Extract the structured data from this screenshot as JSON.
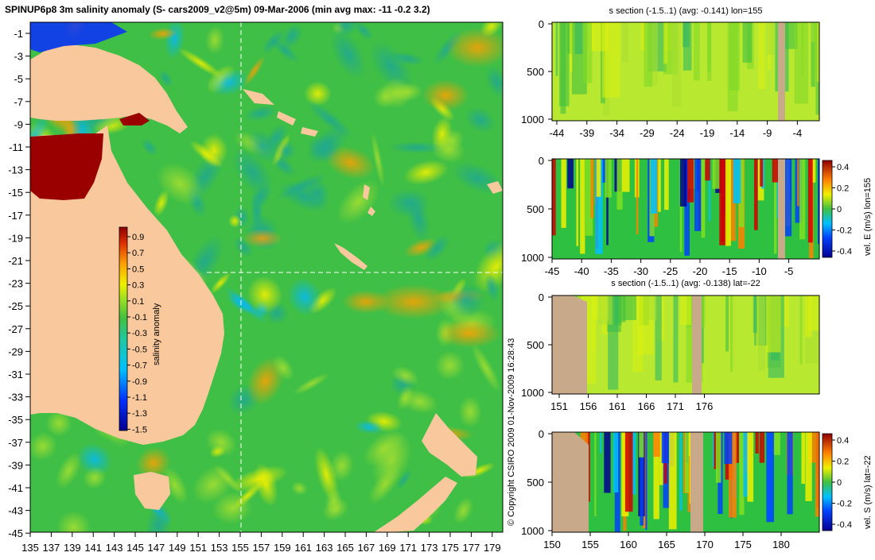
{
  "main_map": {
    "title": "SPINUP6p8 3m salinity anomaly (S- cars2009_v2@5m) 09-Mar-2006 (min avg max: -11 -0.2 3.2)",
    "y_ticks": [
      "-1",
      "-3",
      "-5",
      "-7",
      "-9",
      "-11",
      "-13",
      "-15",
      "-17",
      "-19",
      "-21",
      "-23",
      "-25",
      "-27",
      "-29",
      "-31",
      "-33",
      "-35",
      "-37",
      "-39",
      "-41",
      "-43",
      "-45"
    ],
    "x_ticks": [
      "135",
      "137",
      "139",
      "141",
      "143",
      "145",
      "147",
      "149",
      "151",
      "153",
      "155",
      "157",
      "159",
      "161",
      "163",
      "165",
      "167",
      "169",
      "171",
      "173",
      "175",
      "177",
      "179"
    ],
    "section_lon": 155,
    "section_lat": -22,
    "colorbar": {
      "label": "salinity anomaly",
      "ticks": [
        "0.9",
        "0.7",
        "0.5",
        "0.3",
        "0.1",
        "-0.1",
        "-0.3",
        "-0.5",
        "-0.7",
        "-0.9",
        "-1.1",
        "-1.3",
        "-1.5"
      ]
    }
  },
  "copyright": "© Copyright CSIRO 2009   01-Nov-2009 16:28:43",
  "panels": [
    {
      "title": "s section (-1.5..1) (avg: -0.141) lon=155",
      "y_ticks": [
        "0",
        "500",
        "1000"
      ],
      "x_ticks": [
        "-44",
        "-39",
        "-34",
        "-29",
        "-24",
        "-19",
        "-14",
        "-9",
        "-4"
      ],
      "colorbar": null
    },
    {
      "title": "",
      "y_ticks": [
        "0",
        "500",
        "1000"
      ],
      "x_ticks": [
        "-45",
        "-40",
        "-35",
        "-30",
        "-25",
        "-20",
        "-15",
        "-10",
        "-5"
      ],
      "colorbar": {
        "label": "vel. E (m/s) lon=155",
        "ticks": [
          "0.4",
          "0.2",
          "0",
          "-0.2",
          "-0.4"
        ]
      }
    },
    {
      "title": "s section (-1.5..1) (avg: -0.138) lat=-22",
      "y_ticks": [
        "0",
        "500",
        "1000"
      ],
      "x_ticks": [
        "151",
        "156",
        "161",
        "166",
        "171",
        "176"
      ],
      "colorbar": null
    },
    {
      "title": "",
      "y_ticks": [
        "0",
        "500",
        "1000"
      ],
      "x_ticks": [
        "150",
        "155",
        "160",
        "165",
        "170",
        "175",
        "180"
      ],
      "colorbar": {
        "label": "vel. S (m/s) lat=-22",
        "ticks": [
          "0.4",
          "0.2",
          "0",
          "-0.2",
          "-0.4"
        ]
      }
    }
  ],
  "colors": {
    "land": "#f9c89c",
    "section_land": "#c8aa8a",
    "ocean_base": "#3fbf45"
  }
}
